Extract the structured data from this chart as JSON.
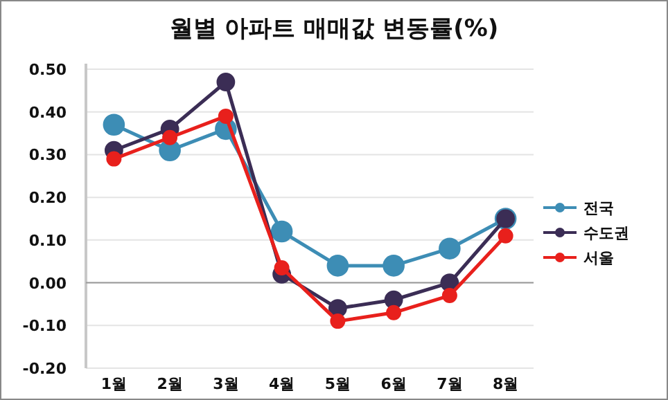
{
  "chart_data": {
    "type": "line",
    "title": "월별 아파트 매매값 변동률(%)",
    "categories": [
      "1월",
      "2월",
      "3월",
      "4월",
      "5월",
      "6월",
      "7월",
      "8월"
    ],
    "series": [
      {
        "name": "전국",
        "color": "#3d8db5",
        "values": [
          0.37,
          0.31,
          0.36,
          0.12,
          0.04,
          0.04,
          0.08,
          0.15
        ]
      },
      {
        "name": "수도권",
        "color": "#3b2d55",
        "values": [
          0.31,
          0.36,
          0.47,
          0.02,
          -0.06,
          -0.04,
          0.0,
          0.15
        ]
      },
      {
        "name": "서울",
        "color": "#e8201c",
        "values": [
          0.29,
          0.34,
          0.39,
          0.035,
          -0.09,
          -0.07,
          -0.03,
          0.11
        ]
      }
    ],
    "ylim": [
      -0.2,
      0.5
    ],
    "yticks": [
      {
        "value": 0.5,
        "label": "0.50"
      },
      {
        "value": 0.4,
        "label": "0.40"
      },
      {
        "value": 0.3,
        "label": "0.30"
      },
      {
        "value": 0.2,
        "label": "0.20"
      },
      {
        "value": 0.1,
        "label": "0.10"
      },
      {
        "value": 0,
        "label": "0.00"
      },
      {
        "value": -0.1,
        "label": "-0.10"
      },
      {
        "value": -0.2,
        "label": "-0.20"
      }
    ],
    "grid": "y",
    "legend": "right",
    "marker": "circle",
    "line_style": "solid"
  }
}
